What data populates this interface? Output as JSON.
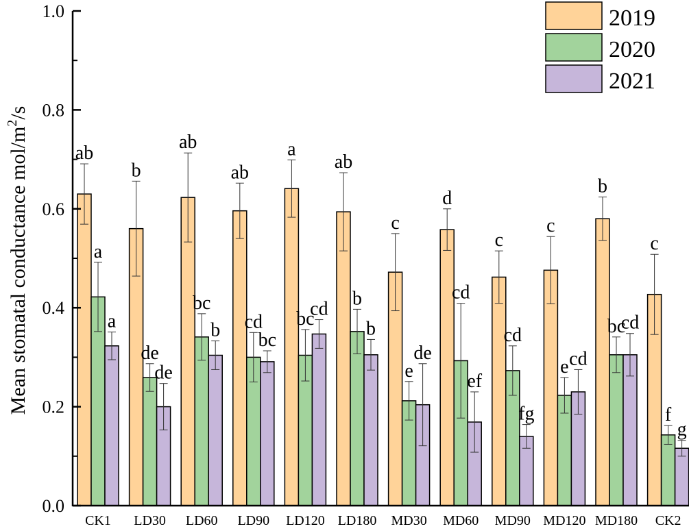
{
  "chart_data": {
    "type": "bar",
    "title": "",
    "xlabel": "",
    "ylabel": "Mean stomatal conductance  mol/m²/s",
    "ylabel_main": "Mean stomatal conductance  mol/m",
    "ylabel_sup": "2",
    "ylabel_tail": "/s",
    "ylim": [
      0,
      1.0
    ],
    "yticks": [
      "0.0",
      "0.2",
      "0.4",
      "0.6",
      "0.8",
      "1.0"
    ],
    "grid": false,
    "legend_position": "top-right",
    "categories": [
      "CK1",
      "LD30",
      "LD60",
      "LD90",
      "LD120",
      "LD180",
      "MD30",
      "MD60",
      "MD90",
      "MD120",
      "MD180",
      "CK2"
    ],
    "series": [
      {
        "name": "2019",
        "color": "#FFD399",
        "values": [
          0.63,
          0.56,
          0.623,
          0.596,
          0.641,
          0.594,
          0.472,
          0.558,
          0.462,
          0.476,
          0.58,
          0.427
        ],
        "errors": [
          0.061,
          0.096,
          0.09,
          0.056,
          0.058,
          0.079,
          0.078,
          0.042,
          0.053,
          0.068,
          0.044,
          0.081
        ],
        "labels": [
          "ab",
          "b",
          "ab",
          "ab",
          "a",
          "ab",
          "c",
          "d",
          "c",
          "c",
          "b",
          "c"
        ]
      },
      {
        "name": "2020",
        "color": "#A2D39C",
        "values": [
          0.422,
          0.259,
          0.341,
          0.3,
          0.304,
          0.352,
          0.212,
          0.293,
          0.273,
          0.223,
          0.305,
          0.143
        ],
        "errors": [
          0.07,
          0.028,
          0.047,
          0.05,
          0.052,
          0.045,
          0.039,
          0.116,
          0.05,
          0.036,
          0.036,
          0.019
        ],
        "labels": [
          "a",
          "de",
          "bc",
          "cd",
          "bc",
          "b",
          "e",
          "cd",
          "cd",
          "e",
          "bc",
          "f"
        ]
      },
      {
        "name": "2021",
        "color": "#C6B6DA",
        "values": [
          0.323,
          0.2,
          0.304,
          0.291,
          0.347,
          0.305,
          0.204,
          0.169,
          0.14,
          0.23,
          0.305,
          0.116
        ],
        "errors": [
          0.028,
          0.047,
          0.029,
          0.022,
          0.029,
          0.031,
          0.083,
          0.061,
          0.024,
          0.045,
          0.043,
          0.016
        ],
        "labels": [
          "a",
          "de",
          "b",
          "bc",
          "cd",
          "b",
          "de",
          "ef",
          "fg",
          "cd",
          "cd",
          "g"
        ]
      }
    ]
  }
}
